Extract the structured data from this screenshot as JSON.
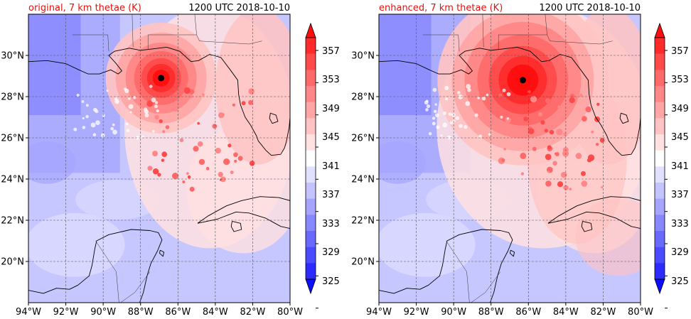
{
  "panels": [
    {
      "title_left": "original, 7 km thetae (K)",
      "title_right": "1200 UTC 2018-10-10",
      "storm_center": {
        "lon": -86.9,
        "lat": 28.9
      },
      "intensity": 0.55,
      "extent": "compact"
    },
    {
      "title_left": "enhanced, 7 km thetae (K)",
      "title_right": "1200 UTC 2018-10-10",
      "storm_center": {
        "lon": -86.3,
        "lat": 28.8
      },
      "intensity": 1.0,
      "extent": "broad"
    }
  ],
  "map": {
    "lon_range": [
      -94,
      -80
    ],
    "lat_range": [
      18,
      32
    ],
    "lon_ticks": [
      "94°W",
      "92°W",
      "90°W",
      "88°W",
      "86°W",
      "84°W",
      "82°W",
      "80°W"
    ],
    "lon_tick_values": [
      -94,
      -92,
      -90,
      -88,
      -86,
      -84,
      -82,
      -80
    ],
    "lat_ticks": [
      "20°N",
      "22°N",
      "24°N",
      "26°N",
      "28°N",
      "30°N"
    ],
    "lat_tick_values": [
      20,
      22,
      24,
      26,
      28,
      30
    ],
    "gridlines": true
  },
  "colorbar": {
    "tick_labels": [
      "325",
      "329",
      "333",
      "337",
      "341",
      "345",
      "349",
      "353",
      "357"
    ],
    "tick_values": [
      325,
      329,
      333,
      337,
      341,
      345,
      349,
      353,
      357
    ],
    "levels": [
      325,
      327,
      329,
      331,
      333,
      335,
      337,
      339,
      341,
      343,
      345,
      347,
      349,
      351,
      353,
      355,
      357
    ],
    "colors": [
      "#0d0dff",
      "#2b2bff",
      "#4a4aff",
      "#6969ff",
      "#8787ff",
      "#a5a5ff",
      "#c3c3ff",
      "#e1e1ff",
      "#ffffff",
      "#ffe1e1",
      "#ffc3c3",
      "#ffa5a5",
      "#ff8787",
      "#ff6969",
      "#ff4a4a",
      "#ff2b2b",
      "#ff0d0d"
    ],
    "extend": "both"
  },
  "colors": {
    "title_left": "#e81010",
    "title_right": "#000000",
    "coastline": "#000000",
    "eye": "#000000"
  }
}
